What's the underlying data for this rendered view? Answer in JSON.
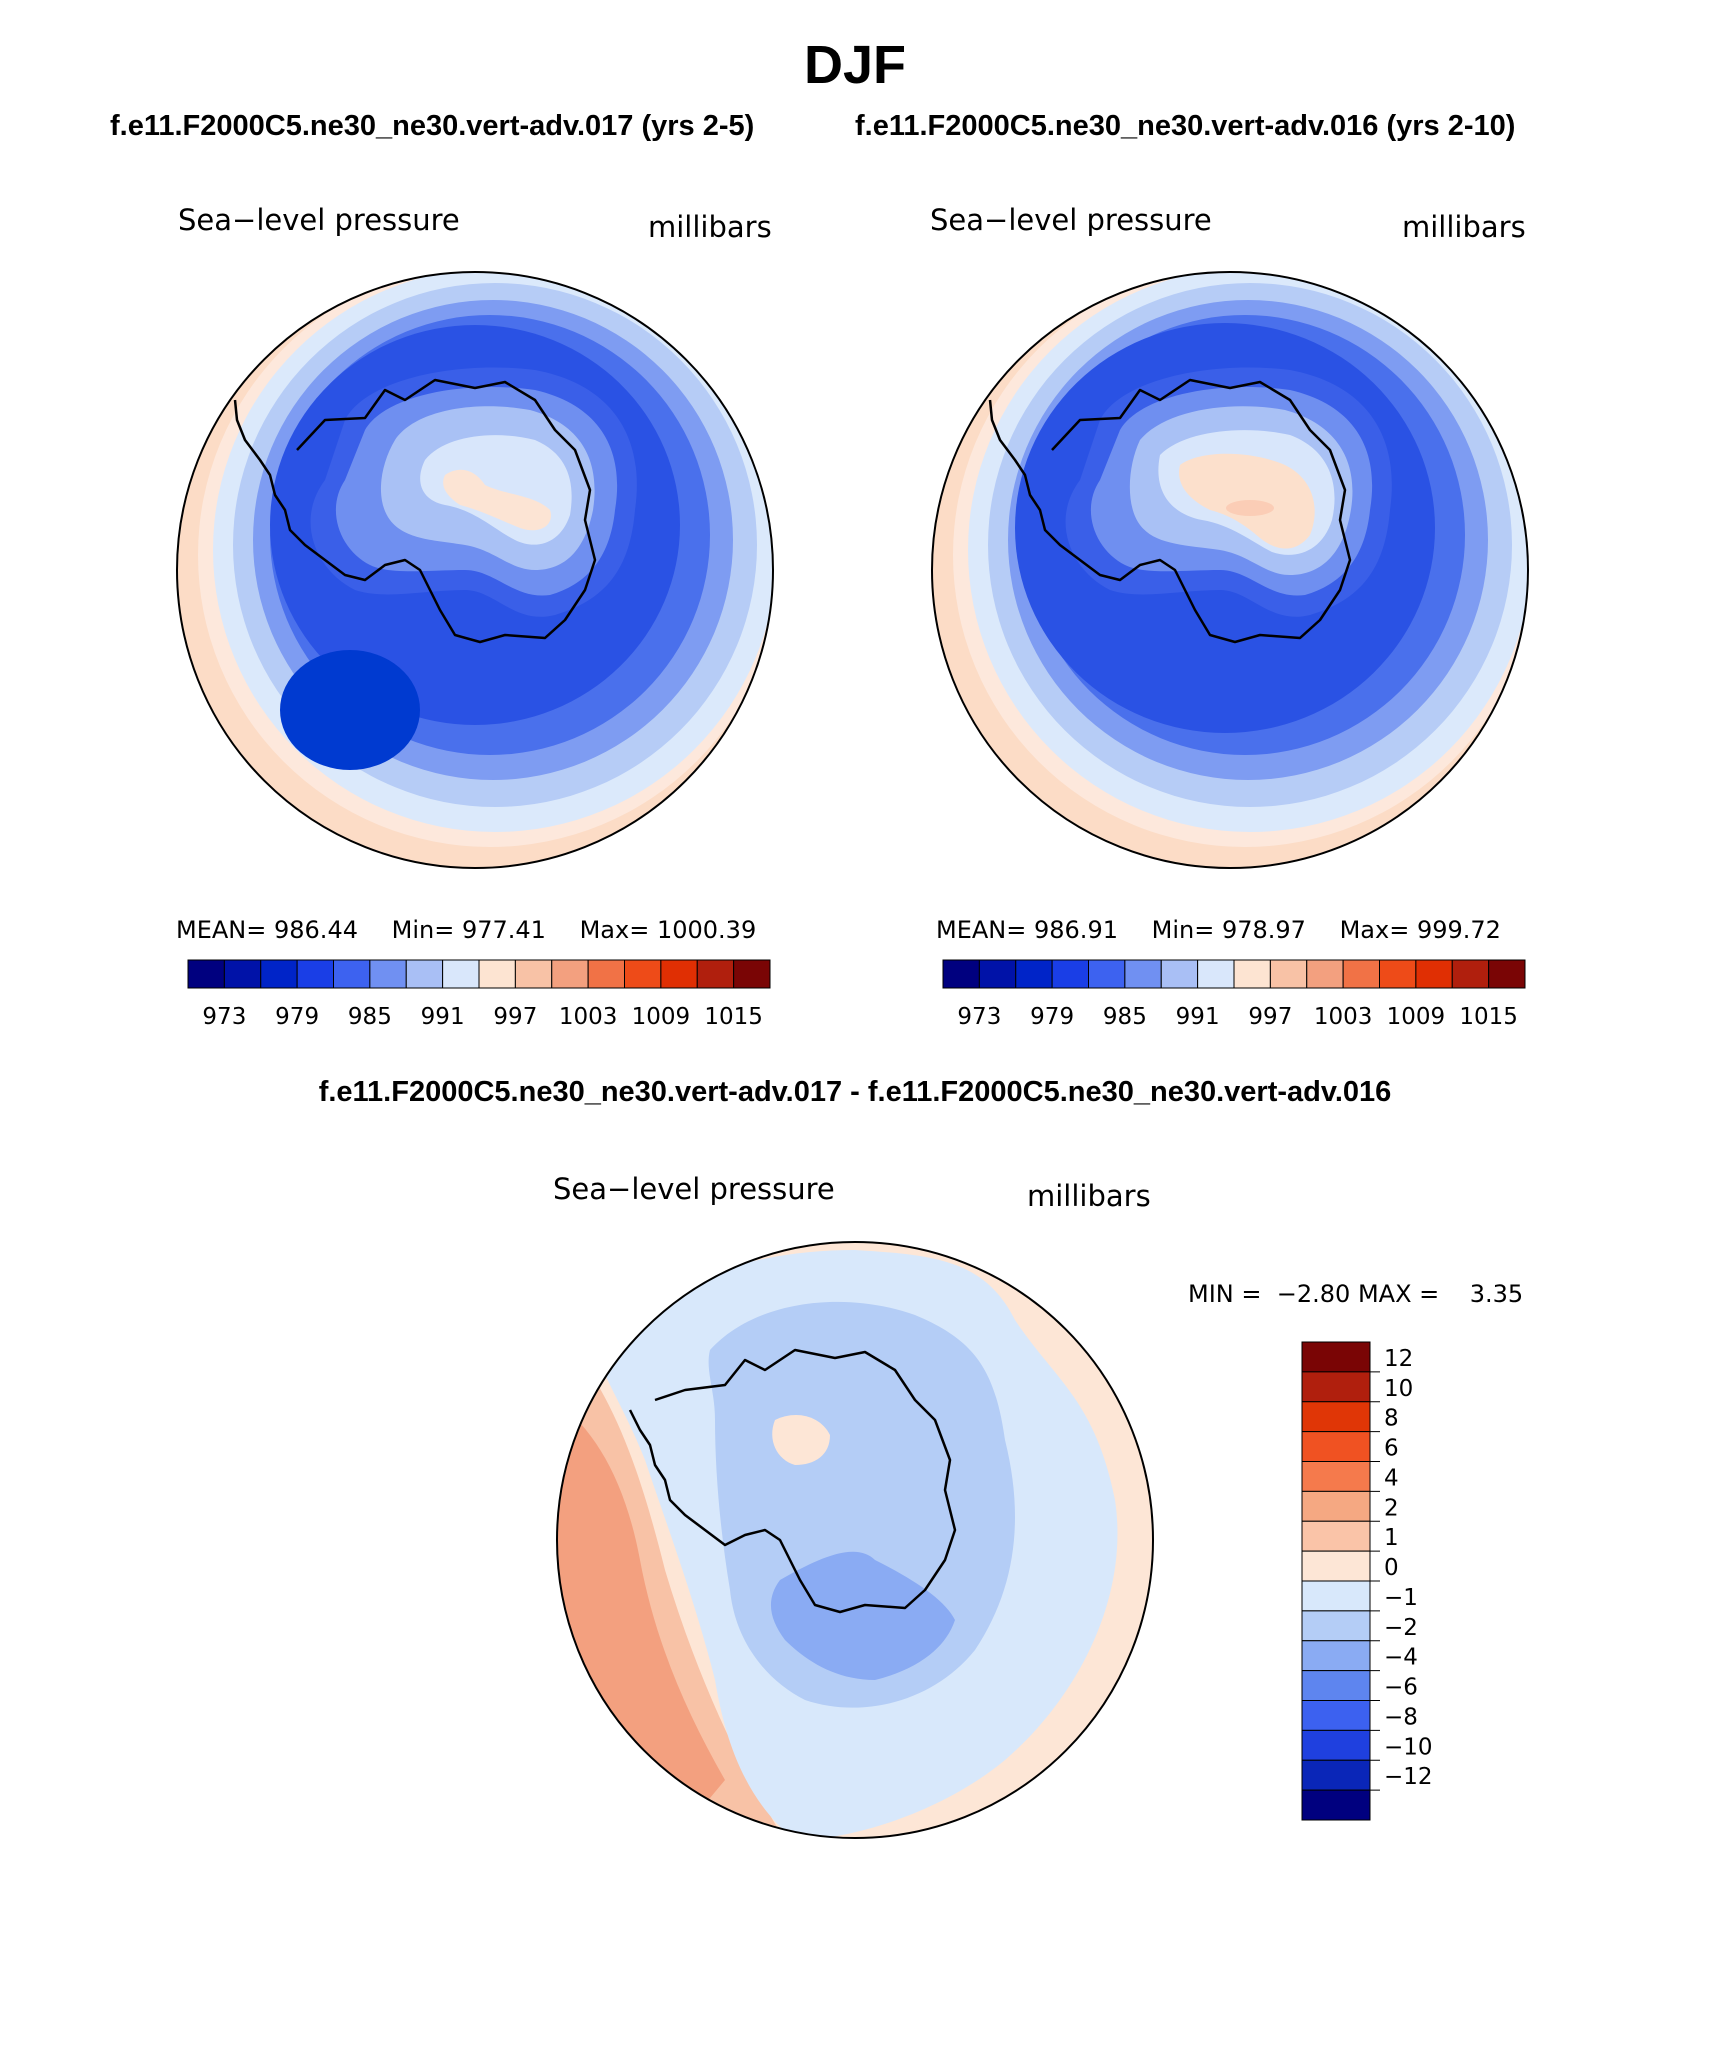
{
  "header": {
    "title": "DJF",
    "left_case": "f.e11.F2000C5.ne30_ne30.vert-adv.017 (yrs 2-5)",
    "right_case": "f.e11.F2000C5.ne30_ne30.vert-adv.016 (yrs 2-10)",
    "diff_title": "f.e11.F2000C5.ne30_ne30.vert-adv.017 - f.e11.F2000C5.ne30_ne30.vert-adv.016"
  },
  "panels": {
    "left": {
      "variable": "Sea−level pressure",
      "units": "millibars",
      "mean_label": "MEAN=",
      "mean": "986.44",
      "min_label": "Min=",
      "min": "977.41",
      "max_label": "Max=",
      "max": "1000.39"
    },
    "right": {
      "variable": "Sea−level pressure",
      "units": "millibars",
      "mean_label": "MEAN=",
      "mean": "986.91",
      "min_label": "Min=",
      "min": "978.97",
      "max_label": "Max=",
      "max": "999.72"
    },
    "diff": {
      "variable": "Sea−level pressure",
      "units": "millibars",
      "min_label": "MIN =",
      "min": "−2.80",
      "max_label": "MAX =",
      "max": "3.35"
    }
  },
  "colorbar_abs": {
    "colors": [
      "#00007f",
      "#0012a8",
      "#0024c8",
      "#1a3ee6",
      "#3d62f0",
      "#7090f2",
      "#a9bff5",
      "#d9e7fb",
      "#fde4d2",
      "#f8c2a6",
      "#f3a07f",
      "#f17246",
      "#ee4b18",
      "#e02f03",
      "#b01f0d",
      "#7a0505"
    ],
    "tick_labels": [
      "973",
      "979",
      "985",
      "991",
      "997",
      "1003",
      "1009",
      "1015"
    ]
  },
  "colorbar_diff": {
    "colors": [
      "#7a0505",
      "#b01f0d",
      "#e03606",
      "#f05222",
      "#f57a4c",
      "#f5a882",
      "#fac4a8",
      "#fde6d6",
      "#d8e8fb",
      "#b4cdf6",
      "#8aabf3",
      "#5e85ef",
      "#3c61f0",
      "#1f40df",
      "#0a26b8",
      "#00007f"
    ],
    "tick_labels": [
      "12",
      "10",
      "8",
      "6",
      "4",
      "2",
      "1",
      "0",
      "−1",
      "−2",
      "−4",
      "−6",
      "−8",
      "−10",
      "−12"
    ]
  },
  "map_fill": {
    "left": [
      "#fcdcc6",
      "#fde8dc",
      "#dbe9fb",
      "#b6ccf6",
      "#7e9cf2",
      "#4a70ec",
      "#2a52e4",
      "#3a5fe8",
      "#6f8ff0",
      "#a9c1f5",
      "#d8e6fb",
      "#fce4d4",
      "#003ad0"
    ],
    "right": [
      "#fcdcc6",
      "#fde8dc",
      "#dbe9fb",
      "#b6ccf6",
      "#7e9cf2",
      "#4a70ec",
      "#2a52e4",
      "#3a5fe8",
      "#6f8ff0",
      "#a9c1f5",
      "#d8e6fb",
      "#fce0cc",
      "#fbcdb6"
    ],
    "diff": [
      "#f3a07f",
      "#f8c2a6",
      "#fde6d6",
      "#d8e8fb",
      "#b4cdf6",
      "#8aabf3"
    ]
  }
}
